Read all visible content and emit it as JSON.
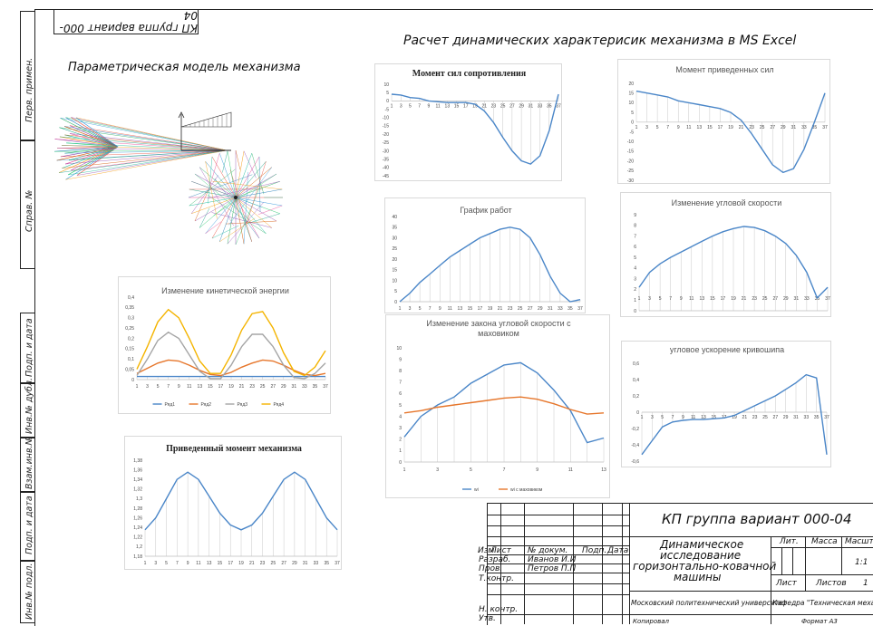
{
  "top_stamp": "КП группа вариант 000-04",
  "headings": {
    "main": "Расчет динамических характерисик механизма в MS Excel",
    "model": "Параметрическая модель механизма"
  },
  "sidebar": [
    "Перв. примен.",
    "Справ. №",
    "Подп. и дата",
    "Инв.№ дубл.",
    "Взам.инв.№",
    "Подп. и дата",
    "Инв.№ подл."
  ],
  "charts": {
    "kinetic": {
      "title": "Изменение кинетической энергии",
      "yticks": [
        "0,4",
        "0,35",
        "0,3",
        "0,25",
        "0,2",
        "0,15",
        "0,1",
        "0,05",
        "0"
      ],
      "xticks": [
        "1",
        "3",
        "5",
        "7",
        "9",
        "11",
        "13",
        "15",
        "17",
        "19",
        "21",
        "23",
        "25",
        "27",
        "29",
        "31",
        "33",
        "35",
        "37"
      ],
      "legend": [
        "Ряд1",
        "Ряд2",
        "Ряд3",
        "Ряд4"
      ],
      "colors": [
        "#4a86c8",
        "#e6762b",
        "#a5a5a5",
        "#f4b400"
      ]
    },
    "reduced_moment": {
      "title": "Приведенный момент механизма",
      "yticks": [
        "1,38",
        "1,36",
        "1,34",
        "1,32",
        "1,3",
        "1,28",
        "1,26",
        "1,24",
        "1,22",
        "1,2",
        "1,18"
      ],
      "xticks": [
        "1",
        "3",
        "5",
        "7",
        "9",
        "11",
        "13",
        "15",
        "17",
        "19",
        "21",
        "23",
        "25",
        "27",
        "29",
        "31",
        "33",
        "35",
        "37"
      ]
    },
    "resistance": {
      "title": "Момент сил сопротивления",
      "yticks": [
        "10",
        "5",
        "0",
        "-5",
        "-10",
        "-15",
        "-20",
        "-25",
        "-30",
        "-35",
        "-40",
        "-45"
      ],
      "xticks": [
        "1",
        "3",
        "5",
        "7",
        "9",
        "11",
        "13",
        "15",
        "17",
        "19",
        "21",
        "23",
        "25",
        "27",
        "29",
        "31",
        "33",
        "35",
        "37"
      ]
    },
    "reduced_forces": {
      "title": "Момент приведенных сил",
      "yticks": [
        "20",
        "15",
        "10",
        "5",
        "0",
        "-5",
        "-10",
        "-15",
        "-20",
        "-25",
        "-30"
      ],
      "xticks": [
        "1",
        "3",
        "5",
        "7",
        "9",
        "11",
        "13",
        "15",
        "17",
        "19",
        "21",
        "23",
        "25",
        "27",
        "29",
        "31",
        "33",
        "35",
        "37"
      ]
    },
    "work": {
      "title": "График работ",
      "yticks": [
        "40",
        "35",
        "30",
        "25",
        "20",
        "15",
        "10",
        "5",
        "0"
      ],
      "xticks": [
        "1",
        "3",
        "5",
        "7",
        "9",
        "11",
        "13",
        "15",
        "17",
        "19",
        "21",
        "23",
        "25",
        "27",
        "29",
        "31",
        "33",
        "35",
        "37"
      ]
    },
    "angular_speed": {
      "title": "Изменение угловой скорости",
      "yticks": [
        "9",
        "8",
        "7",
        "6",
        "5",
        "4",
        "3",
        "2",
        "1",
        "0"
      ],
      "xticks": [
        "1",
        "3",
        "5",
        "7",
        "9",
        "11",
        "13",
        "15",
        "17",
        "19",
        "21",
        "23",
        "25",
        "27",
        "29",
        "31",
        "33",
        "35",
        "37"
      ]
    },
    "flywheel": {
      "title_line1": "Изменение закона угловой скорости с",
      "title_line2": "маховиком",
      "yticks": [
        "10",
        "9",
        "8",
        "7",
        "6",
        "5",
        "4",
        "3",
        "2",
        "1",
        "0"
      ],
      "xticks": [
        "1",
        "3",
        "5",
        "7",
        "9",
        "11",
        "13"
      ],
      "legend": [
        "wi",
        "wi с маховиком"
      ],
      "colors": [
        "#4a86c8",
        "#e6762b"
      ]
    },
    "acceleration": {
      "title": "угловое ускорение кривошипа",
      "yticks": [
        "0,6",
        "0,4",
        "0,2",
        "0",
        "-0,2",
        "-0,4",
        "-0,6"
      ],
      "xticks": [
        "1",
        "3",
        "5",
        "7",
        "9",
        "11",
        "13",
        "15",
        "17",
        "19",
        "21",
        "23",
        "25",
        "27",
        "29",
        "31",
        "33",
        "35",
        "37"
      ]
    }
  },
  "chart_data": [
    {
      "type": "line",
      "title": "Изменение кинетической энергии",
      "x": [
        1,
        3,
        5,
        7,
        9,
        11,
        13,
        15,
        17,
        19,
        21,
        23,
        25,
        27,
        29,
        31,
        33,
        35,
        37
      ],
      "series": [
        {
          "name": "Ряд1",
          "values": [
            0.015,
            0.015,
            0.015,
            0.015,
            0.015,
            0.015,
            0.015,
            0.015,
            0.015,
            0.015,
            0.015,
            0.015,
            0.015,
            0.015,
            0.015,
            0.015,
            0.015,
            0.015,
            0.015
          ]
        },
        {
          "name": "Ряд2",
          "values": [
            0.03,
            0.055,
            0.08,
            0.095,
            0.09,
            0.07,
            0.045,
            0.025,
            0.02,
            0.035,
            0.06,
            0.08,
            0.095,
            0.09,
            0.07,
            0.045,
            0.025,
            0.02,
            0.03
          ]
        },
        {
          "name": "Ряд3",
          "values": [
            0.02,
            0.1,
            0.19,
            0.23,
            0.2,
            0.12,
            0.04,
            0.005,
            0.005,
            0.07,
            0.16,
            0.22,
            0.22,
            0.16,
            0.07,
            0.01,
            0.005,
            0.03,
            0.08
          ]
        },
        {
          "name": "Ряд4",
          "values": [
            0.05,
            0.16,
            0.28,
            0.34,
            0.3,
            0.2,
            0.09,
            0.03,
            0.03,
            0.12,
            0.24,
            0.32,
            0.33,
            0.25,
            0.13,
            0.04,
            0.02,
            0.06,
            0.14
          ]
        }
      ],
      "ylim": [
        0,
        0.4
      ]
    },
    {
      "type": "line",
      "title": "Приведенный момент механизма",
      "x": [
        1,
        3,
        5,
        7,
        9,
        11,
        13,
        15,
        17,
        19,
        21,
        23,
        25,
        27,
        29,
        31,
        33,
        35,
        37
      ],
      "series": [
        {
          "values": [
            1.235,
            1.26,
            1.3,
            1.34,
            1.355,
            1.34,
            1.305,
            1.27,
            1.245,
            1.235,
            1.245,
            1.27,
            1.305,
            1.34,
            1.355,
            1.34,
            1.3,
            1.26,
            1.235
          ]
        }
      ],
      "ylim": [
        1.18,
        1.38
      ]
    },
    {
      "type": "line",
      "title": "Момент сил сопротивления",
      "x": [
        1,
        3,
        5,
        7,
        9,
        11,
        13,
        15,
        17,
        19,
        21,
        23,
        25,
        27,
        29,
        31,
        33,
        35,
        37
      ],
      "series": [
        {
          "values": [
            4,
            3.5,
            2,
            1.5,
            0,
            -0.5,
            -1,
            -1,
            -1,
            -2,
            -6,
            -13,
            -22,
            -30,
            -36,
            -38,
            -33,
            -18,
            4
          ]
        }
      ],
      "ylim": [
        -45,
        10
      ]
    },
    {
      "type": "line",
      "title": "Момент приведенных сил",
      "x": [
        1,
        3,
        5,
        7,
        9,
        11,
        13,
        15,
        17,
        19,
        21,
        23,
        25,
        27,
        29,
        31,
        33,
        35,
        37
      ],
      "series": [
        {
          "values": [
            16,
            15,
            14,
            13,
            11,
            10,
            9,
            8,
            7,
            5,
            1,
            -6,
            -14,
            -22,
            -26,
            -24,
            -14,
            0,
            15
          ]
        }
      ],
      "ylim": [
        -30,
        20
      ]
    },
    {
      "type": "line",
      "title": "График работ",
      "x": [
        1,
        3,
        5,
        7,
        9,
        11,
        13,
        15,
        17,
        19,
        21,
        23,
        25,
        27,
        29,
        31,
        33,
        35,
        37
      ],
      "series": [
        {
          "values": [
            0,
            4,
            9,
            13,
            17,
            21,
            24,
            27,
            30,
            32,
            34,
            35,
            34,
            30,
            22,
            12,
            4,
            0,
            1
          ]
        }
      ],
      "ylim": [
        0,
        40
      ]
    },
    {
      "type": "line",
      "title": "Изменение угловой скорости",
      "x": [
        1,
        3,
        5,
        7,
        9,
        11,
        13,
        15,
        17,
        19,
        21,
        23,
        25,
        27,
        29,
        31,
        33,
        35,
        37
      ],
      "series": [
        {
          "values": [
            2.2,
            3.6,
            4.4,
            5,
            5.5,
            6,
            6.5,
            7,
            7.4,
            7.7,
            7.9,
            7.8,
            7.5,
            7,
            6.3,
            5.2,
            3.6,
            1.2,
            2.2
          ]
        }
      ],
      "ylim": [
        0,
        9
      ]
    },
    {
      "type": "line",
      "title": "Изменение закона угловой скорости с маховиком",
      "x": [
        1,
        2,
        3,
        4,
        5,
        6,
        7,
        8,
        9,
        10,
        11,
        12,
        13
      ],
      "series": [
        {
          "name": "wi",
          "values": [
            2.2,
            4,
            5,
            5.7,
            6.9,
            7.7,
            8.5,
            8.7,
            7.8,
            6.3,
            4.5,
            1.7,
            2.1
          ]
        },
        {
          "name": "wi с маховиком",
          "values": [
            4.3,
            4.5,
            4.8,
            5,
            5.2,
            5.4,
            5.6,
            5.7,
            5.5,
            5.1,
            4.6,
            4.2,
            4.3
          ]
        }
      ],
      "ylim": [
        0,
        10
      ]
    },
    {
      "type": "line",
      "title": "угловое ускорение кривошипа",
      "x": [
        1,
        3,
        5,
        7,
        9,
        11,
        13,
        15,
        17,
        19,
        21,
        23,
        25,
        27,
        29,
        31,
        33,
        35,
        37
      ],
      "series": [
        {
          "values": [
            -0.52,
            -0.35,
            -0.18,
            -0.12,
            -0.1,
            -0.09,
            -0.09,
            -0.08,
            -0.07,
            -0.04,
            0.02,
            0.08,
            0.14,
            0.2,
            0.28,
            0.36,
            0.46,
            0.42,
            -0.52
          ]
        }
      ],
      "ylim": [
        -0.6,
        0.6
      ]
    }
  ],
  "title_block": {
    "doc_code": "КП группа вариант 000-04",
    "name_l1": "Динамическое",
    "name_l2": "исследование",
    "name_l3": "горизонтально-ковачной",
    "name_l4": "машины",
    "col_izm": "Изм",
    "col_list": "Лист",
    "col_ndok": "№ докум.",
    "col_podp": "Подп.",
    "col_data": "Дата",
    "razrab": "Разраб.",
    "razrab_name": "Иванов И.И",
    "prov": "Пров.",
    "prov_name": "Петров П.П",
    "tkontr": "Т.контр.",
    "nkontr": "Н. контр.",
    "utv": "Утв.",
    "lit": "Лит.",
    "massa": "Масса",
    "masshtab": "Масштаб",
    "scale": "1:1",
    "list": "Лист",
    "listov": "Листов",
    "listov_n": "1",
    "university": "Московский политехнический университет",
    "dept": "Кафедра \"Техническая механика\"",
    "kopiroval": "Копировал",
    "format": "Формат А3"
  }
}
